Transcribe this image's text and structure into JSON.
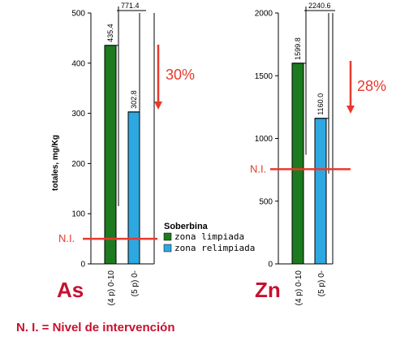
{
  "chart_data": [
    {
      "type": "bar",
      "element": "As",
      "ylabel": "totales, mg/Kg",
      "ylim": [
        0,
        500
      ],
      "yticks": [
        0,
        100,
        200,
        300,
        400,
        500
      ],
      "categories": [
        "(4 p) 0-10",
        "(5 p) 0-"
      ],
      "values": [
        435.4,
        302.8
      ],
      "value_labels": [
        "435.4",
        "302.8"
      ],
      "bar_colors": [
        "#1e7a1e",
        "#2ea8e0"
      ],
      "error_top": [
        771.4,
        500
      ],
      "error_top_label": "771.4",
      "error_bottom": [
        115,
        115
      ],
      "reduction_label": "30%",
      "ni_value": 50,
      "ni_label": "N.I."
    },
    {
      "type": "bar",
      "element": "Zn",
      "ylabel": "",
      "ylim": [
        0,
        2000
      ],
      "yticks": [
        0,
        500,
        1000,
        1500,
        2000
      ],
      "categories": [
        "(4 p) 0-10",
        "(5 p) 0-"
      ],
      "values": [
        1599.8,
        1160.0
      ],
      "value_labels": [
        "1599.8",
        "1160.0"
      ],
      "bar_colors": [
        "#1e7a1e",
        "#2ea8e0"
      ],
      "error_top": [
        2240.6,
        2000
      ],
      "error_top_label": "2240.6",
      "error_bottom": [
        870,
        720
      ],
      "reduction_label": "28%",
      "ni_value": 755,
      "ni_label": "N.I."
    }
  ],
  "legend": {
    "title": "Soberbina",
    "items": [
      {
        "label": "zona limpiada",
        "color": "#1e7a1e"
      },
      {
        "label": "zona relimpiada",
        "color": "#2ea8e0"
      }
    ],
    "placement": "center"
  },
  "footnote": "N. I. = Nivel de intervención",
  "colors": {
    "accent": "#e8392c",
    "metal_label": "#c8102e"
  }
}
